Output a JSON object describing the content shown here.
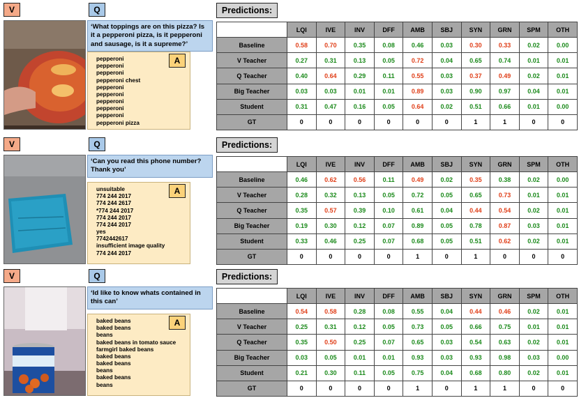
{
  "labels": {
    "v": "V",
    "q": "Q",
    "a": "A",
    "predictions": "Predictions:"
  },
  "columns": [
    "LQI",
    "IVE",
    "INV",
    "DFF",
    "AMB",
    "SBJ",
    "SYN",
    "GRN",
    "SPM",
    "OTH"
  ],
  "colors": {
    "tag_v": "#f4a988",
    "tag_q": "#a9c9e8",
    "tag_a": "#fbd27a",
    "question_bg": "#bcd5ee",
    "answer_bg": "#fdebc4",
    "good": "#1b8a1b",
    "bad": "#e0401a",
    "header": "#a6a6a6"
  },
  "panels": [
    {
      "image": "pizza-box-photo",
      "question": "‘What toppings are on this pizza? Is it a pepperoni pizza, is it pepperoni and sausage, is it a supreme?’",
      "answers": [
        "pepperoni",
        "pepperoni",
        "pepperoni",
        "pepperoni chest",
        "pepperoni",
        "pepperoni",
        "pepperoni",
        "pepperoni",
        "pepperoni",
        "pepperoni pizza"
      ],
      "rows": [
        {
          "label": "Baseline",
          "values": [
            "0.58",
            "0.70",
            "0.35",
            "0.08",
            "0.46",
            "0.03",
            "0.30",
            "0.33",
            "0.02",
            "0.00"
          ],
          "flags": [
            "r",
            "r",
            "g",
            "g",
            "g",
            "g",
            "r",
            "r",
            "g",
            "g"
          ]
        },
        {
          "label": "V Teacher",
          "values": [
            "0.27",
            "0.31",
            "0.13",
            "0.05",
            "0.72",
            "0.04",
            "0.65",
            "0.74",
            "0.01",
            "0.01"
          ],
          "flags": [
            "g",
            "g",
            "g",
            "g",
            "r",
            "g",
            "g",
            "g",
            "g",
            "g"
          ]
        },
        {
          "label": "Q Teacher",
          "values": [
            "0.40",
            "0.64",
            "0.29",
            "0.11",
            "0.55",
            "0.03",
            "0.37",
            "0.49",
            "0.02",
            "0.01"
          ],
          "flags": [
            "g",
            "r",
            "g",
            "g",
            "r",
            "g",
            "r",
            "r",
            "g",
            "g"
          ]
        },
        {
          "label": "Big Teacher",
          "values": [
            "0.03",
            "0.03",
            "0.01",
            "0.01",
            "0.89",
            "0.03",
            "0.90",
            "0.97",
            "0.04",
            "0.01"
          ],
          "flags": [
            "g",
            "g",
            "g",
            "g",
            "r",
            "g",
            "g",
            "g",
            "g",
            "g"
          ]
        },
        {
          "label": "Student",
          "values": [
            "0.31",
            "0.47",
            "0.16",
            "0.05",
            "0.64",
            "0.02",
            "0.51",
            "0.66",
            "0.01",
            "0.00"
          ],
          "flags": [
            "g",
            "g",
            "g",
            "g",
            "r",
            "g",
            "g",
            "g",
            "g",
            "g"
          ]
        },
        {
          "label": "GT",
          "values": [
            "0",
            "0",
            "0",
            "0",
            "0",
            "0",
            "1",
            "1",
            "0",
            "0"
          ],
          "flags": [
            "k",
            "k",
            "k",
            "k",
            "k",
            "k",
            "k",
            "k",
            "k",
            "k"
          ]
        }
      ]
    },
    {
      "image": "blue-note-photo",
      "question": "‘Can you read this phone number? Thank you’",
      "answers": [
        "unsuitable",
        "774 244 2017",
        "774 244 2617",
        "*774 244 2017",
        "774 244 2017",
        "774 244 2017",
        "yes",
        "7742442617",
        "insufficient image quality",
        "774 244 2017"
      ],
      "rows": [
        {
          "label": "Baseline",
          "values": [
            "0.46",
            "0.62",
            "0.56",
            "0.11",
            "0.49",
            "0.02",
            "0.35",
            "0.38",
            "0.02",
            "0.00"
          ],
          "flags": [
            "g",
            "r",
            "r",
            "g",
            "r",
            "g",
            "r",
            "g",
            "g",
            "g"
          ]
        },
        {
          "label": "V Teacher",
          "values": [
            "0.28",
            "0.32",
            "0.13",
            "0.05",
            "0.72",
            "0.05",
            "0.65",
            "0.73",
            "0.01",
            "0.01"
          ],
          "flags": [
            "g",
            "g",
            "g",
            "g",
            "g",
            "g",
            "g",
            "r",
            "g",
            "g"
          ]
        },
        {
          "label": "Q Teacher",
          "values": [
            "0.35",
            "0.57",
            "0.39",
            "0.10",
            "0.61",
            "0.04",
            "0.44",
            "0.54",
            "0.02",
            "0.01"
          ],
          "flags": [
            "g",
            "r",
            "g",
            "g",
            "g",
            "g",
            "r",
            "r",
            "g",
            "g"
          ]
        },
        {
          "label": "Big Teacher",
          "values": [
            "0.19",
            "0.30",
            "0.12",
            "0.07",
            "0.89",
            "0.05",
            "0.78",
            "0.87",
            "0.03",
            "0.01"
          ],
          "flags": [
            "g",
            "g",
            "g",
            "g",
            "g",
            "g",
            "g",
            "r",
            "g",
            "g"
          ]
        },
        {
          "label": "Student",
          "values": [
            "0.33",
            "0.46",
            "0.25",
            "0.07",
            "0.68",
            "0.05",
            "0.51",
            "0.62",
            "0.02",
            "0.01"
          ],
          "flags": [
            "g",
            "g",
            "g",
            "g",
            "g",
            "g",
            "g",
            "r",
            "g",
            "g"
          ]
        },
        {
          "label": "GT",
          "values": [
            "0",
            "0",
            "0",
            "0",
            "1",
            "0",
            "1",
            "0",
            "0",
            "0"
          ],
          "flags": [
            "k",
            "k",
            "k",
            "k",
            "k",
            "k",
            "k",
            "k",
            "k",
            "k"
          ]
        }
      ]
    },
    {
      "image": "bean-can-photo",
      "question": "‘Id like to know whats contained in this can’",
      "answers": [
        "baked beans",
        "baked beans",
        "beans",
        "baked beans in tomato sauce",
        "farmgirl baked beans",
        "baked beans",
        "baked beans",
        "beans",
        "baked beans",
        "beans"
      ],
      "rows": [
        {
          "label": "Baseline",
          "values": [
            "0.54",
            "0.58",
            "0.28",
            "0.08",
            "0.55",
            "0.04",
            "0.44",
            "0.46",
            "0.02",
            "0.01"
          ],
          "flags": [
            "r",
            "r",
            "g",
            "g",
            "g",
            "g",
            "r",
            "r",
            "g",
            "g"
          ]
        },
        {
          "label": "V Teacher",
          "values": [
            "0.25",
            "0.31",
            "0.12",
            "0.05",
            "0.73",
            "0.05",
            "0.66",
            "0.75",
            "0.01",
            "0.01"
          ],
          "flags": [
            "g",
            "g",
            "g",
            "g",
            "g",
            "g",
            "g",
            "g",
            "g",
            "g"
          ]
        },
        {
          "label": "Q Teacher",
          "values": [
            "0.35",
            "0.50",
            "0.25",
            "0.07",
            "0.65",
            "0.03",
            "0.54",
            "0.63",
            "0.02",
            "0.01"
          ],
          "flags": [
            "g",
            "r",
            "g",
            "g",
            "g",
            "g",
            "g",
            "g",
            "g",
            "g"
          ]
        },
        {
          "label": "Big Teacher",
          "values": [
            "0.03",
            "0.05",
            "0.01",
            "0.01",
            "0.93",
            "0.03",
            "0.93",
            "0.98",
            "0.03",
            "0.00"
          ],
          "flags": [
            "g",
            "g",
            "g",
            "g",
            "g",
            "g",
            "g",
            "g",
            "g",
            "g"
          ]
        },
        {
          "label": "Student",
          "values": [
            "0.21",
            "0.30",
            "0.11",
            "0.05",
            "0.75",
            "0.04",
            "0.68",
            "0.80",
            "0.02",
            "0.01"
          ],
          "flags": [
            "g",
            "g",
            "g",
            "g",
            "g",
            "g",
            "g",
            "g",
            "g",
            "g"
          ]
        },
        {
          "label": "GT",
          "values": [
            "0",
            "0",
            "0",
            "0",
            "1",
            "0",
            "1",
            "1",
            "0",
            "0"
          ],
          "flags": [
            "k",
            "k",
            "k",
            "k",
            "k",
            "k",
            "k",
            "k",
            "k",
            "k"
          ]
        }
      ]
    }
  ]
}
